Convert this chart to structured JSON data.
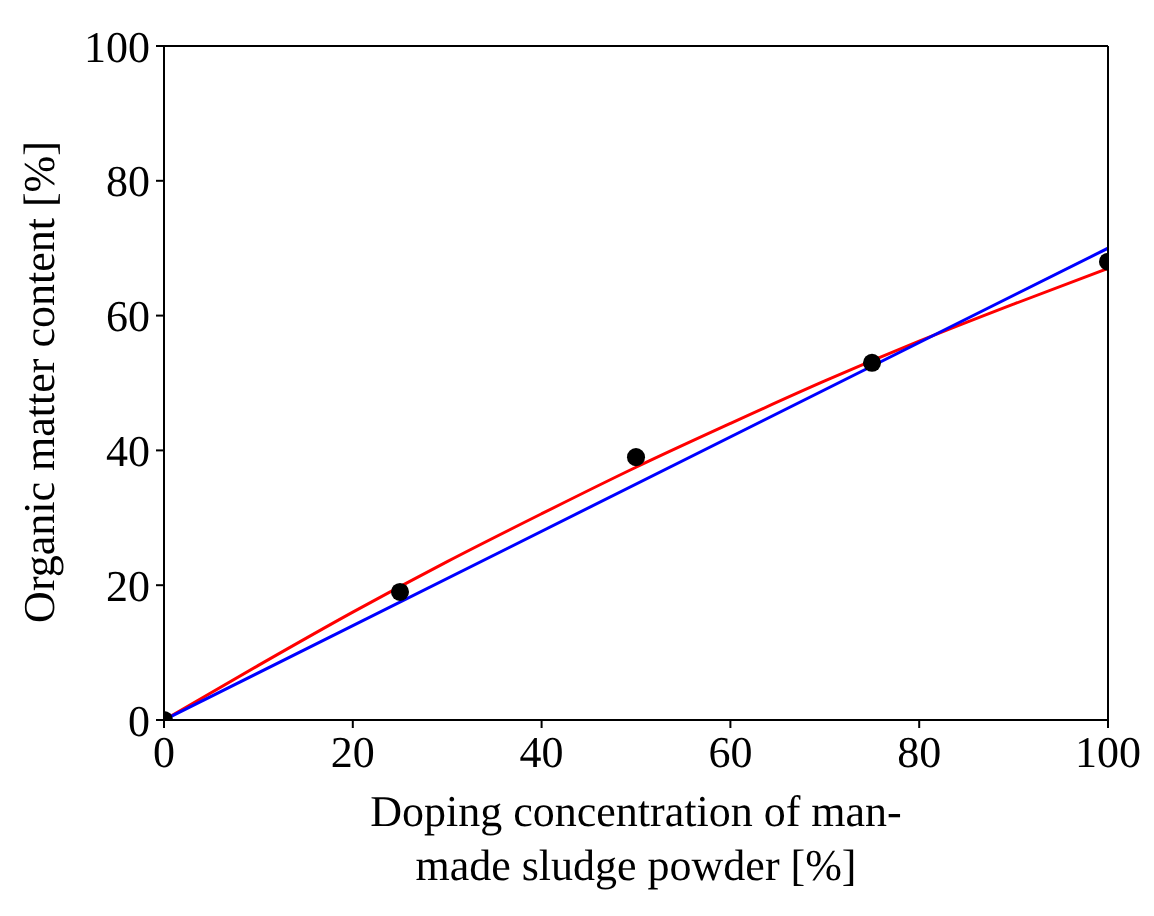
{
  "chart_data": {
    "type": "scatter",
    "xlabel": "Doping concentration of man-made sludge powder [%]",
    "ylabel": "Organic matter content [%]",
    "xlim": [
      0,
      100
    ],
    "xticks": [
      0,
      20,
      40,
      60,
      80,
      100
    ],
    "ylim": [
      0,
      100
    ],
    "yticks": [
      0,
      20,
      40,
      60,
      80,
      100
    ],
    "grid": false,
    "series": [
      {
        "color": "#000000",
        "marker": "circle",
        "x": [
          0,
          25,
          50,
          75,
          100
        ],
        "values": [
          0,
          19,
          39,
          53,
          68
        ]
      },
      {
        "type": "line",
        "color": "#ff0000",
        "marker": "none",
        "x": [
          0,
          10,
          20,
          30,
          40,
          50,
          60,
          70,
          80,
          90,
          100
        ],
        "values": [
          0,
          8.1,
          16,
          23.5,
          30.6,
          37.5,
          44,
          50.3,
          56.2,
          61.7,
          67
        ]
      },
      {
        "type": "line",
        "color": "#0000ff",
        "marker": "none",
        "x": [
          0,
          100
        ],
        "values": [
          0,
          70
        ]
      }
    ]
  }
}
